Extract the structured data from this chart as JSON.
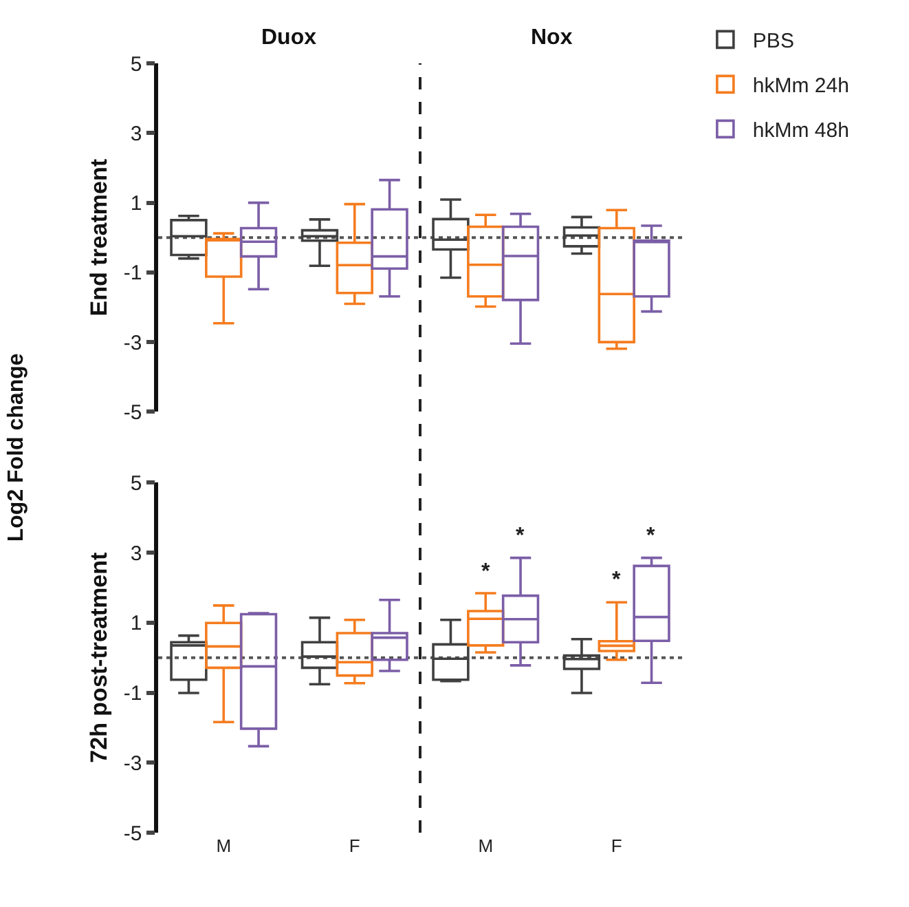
{
  "chart_data": [
    {
      "type": "box",
      "ylabel": "End treatment",
      "categories": [
        null,
        null,
        null,
        null
      ],
      "ylim": [
        -5,
        5
      ],
      "yticks": [
        -5,
        -3,
        -1,
        1,
        3,
        5
      ],
      "tick_labels": "y",
      "legend": "top right",
      "ref_lines": [
        {
          "axis": "y",
          "value": 0,
          "line_style": "dotted",
          "color": "#555555"
        }
      ],
      "annotations": [
        "Log2 Fold change",
        "Duox",
        "Nox"
      ],
      "series": [
        {
          "name": "PBS",
          "color": "#404040",
          "boxes": [
            {
              "low": -0.6,
              "q1": -0.5,
              "median": 0.04,
              "q3": 0.5,
              "high": 0.62
            },
            {
              "low": -0.81,
              "q1": -0.09,
              "median": 0.04,
              "q3": 0.21,
              "high": 0.52
            },
            {
              "low": -1.15,
              "q1": -0.34,
              "median": -0.06,
              "q3": 0.53,
              "high": 1.09
            },
            {
              "low": -0.46,
              "q1": -0.25,
              "median": 0.06,
              "q3": 0.29,
              "high": 0.59
            }
          ]
        },
        {
          "name": "hkMm 24h",
          "color": "#f57c1f",
          "boxes": [
            {
              "low": -2.46,
              "q1": -1.12,
              "median": -0.06,
              "q3": -0.04,
              "high": 0.12
            },
            {
              "low": -1.9,
              "q1": -1.59,
              "median": -0.79,
              "q3": -0.15,
              "high": 0.96
            },
            {
              "low": -1.98,
              "q1": -1.69,
              "median": -0.78,
              "q3": 0.31,
              "high": 0.65
            },
            {
              "low": -3.19,
              "q1": -3.0,
              "median": -1.62,
              "q3": 0.27,
              "high": 0.79
            }
          ]
        },
        {
          "name": "hkMm 48h",
          "color": "#7b5ea7",
          "boxes": [
            {
              "low": -1.48,
              "q1": -0.54,
              "median": -0.12,
              "q3": 0.27,
              "high": 1.0
            },
            {
              "low": -1.69,
              "q1": -0.89,
              "median": -0.54,
              "q3": 0.81,
              "high": 1.65
            },
            {
              "low": -3.04,
              "q1": -1.79,
              "median": -0.53,
              "q3": 0.31,
              "high": 0.68
            },
            {
              "low": -2.12,
              "q1": -1.69,
              "median": -0.12,
              "q3": -0.09,
              "high": 0.34
            }
          ]
        }
      ]
    },
    {
      "type": "box",
      "ylabel": "72h post-treatment",
      "categories": [
        "M",
        "F",
        "M",
        "F"
      ],
      "ylim": [
        -5,
        5
      ],
      "yticks": [
        -5,
        -3,
        -1,
        1,
        3,
        5
      ],
      "ref_lines": [
        {
          "axis": "y",
          "value": 0,
          "line_style": "dotted",
          "color": "#555555"
        }
      ],
      "annotations": [
        "*",
        "*",
        "*",
        "*"
      ],
      "series": [
        {
          "color": "#404040",
          "boxes": [
            {
              "low": -1.01,
              "q1": -0.63,
              "median": 0.35,
              "q3": 0.44,
              "high": 0.63
            },
            {
              "low": -0.76,
              "q1": -0.29,
              "median": 0.03,
              "q3": 0.44,
              "high": 1.14
            },
            {
              "low": -0.67,
              "q1": -0.63,
              "median": -0.03,
              "q3": 0.38,
              "high": 1.08
            },
            {
              "low": -1.01,
              "q1": -0.32,
              "median": -0.04,
              "q3": 0.06,
              "high": 0.53
            }
          ]
        },
        {
          "color": "#f57c1f",
          "boxes": [
            {
              "low": -1.84,
              "q1": -0.29,
              "median": 0.32,
              "q3": 0.99,
              "high": 1.49
            },
            {
              "low": -0.73,
              "q1": -0.51,
              "median": -0.13,
              "q3": 0.7,
              "high": 1.08
            },
            {
              "low": 0.15,
              "q1": 0.35,
              "median": 1.11,
              "q3": 1.33,
              "high": 1.84
            },
            {
              "low": -0.06,
              "q1": 0.19,
              "median": 0.34,
              "q3": 0.47,
              "high": 1.58
            }
          ]
        },
        {
          "color": "#7b5ea7",
          "boxes": [
            {
              "low": -2.53,
              "q1": -2.03,
              "median": -0.25,
              "q3": 1.24,
              "high": 1.27
            },
            {
              "low": -0.38,
              "q1": -0.06,
              "median": 0.57,
              "q3": 0.7,
              "high": 1.65
            },
            {
              "low": -0.22,
              "q1": 0.44,
              "median": 1.1,
              "q3": 1.77,
              "high": 2.85
            },
            {
              "low": -0.72,
              "q1": 0.48,
              "median": 1.16,
              "q3": 2.62,
              "high": 2.85
            }
          ]
        }
      ]
    }
  ]
}
